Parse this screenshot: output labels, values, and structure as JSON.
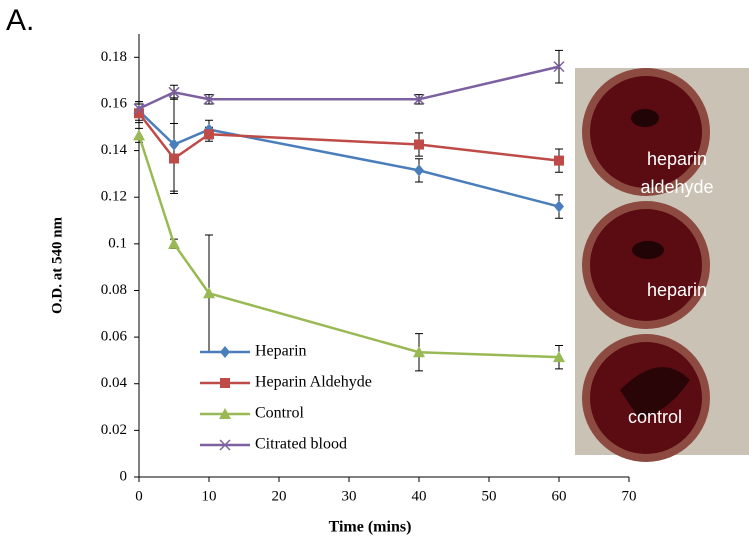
{
  "panel_label": "A.",
  "chart_data": {
    "type": "line",
    "x_label": "Time (mins)",
    "y_label": "O.D. at 540 nm",
    "x": [
      0,
      5,
      10,
      40,
      60
    ],
    "xlim": [
      0,
      70
    ],
    "xticks": [
      0,
      10,
      20,
      30,
      40,
      50,
      60,
      70
    ],
    "ylim": [
      0,
      0.19
    ],
    "yticks": [
      0,
      0.02,
      0.04,
      0.06,
      0.08,
      0.1,
      0.12,
      0.14,
      0.16,
      0.18
    ],
    "grid": false,
    "series": [
      {
        "name": "Heparin",
        "color": "#4a7ebb",
        "marker": "diamond",
        "values": [
          0.157,
          0.1426,
          0.149,
          0.1315,
          0.116
        ],
        "errors": [
          0.004,
          0.02,
          0.004,
          0.005,
          0.005
        ]
      },
      {
        "name": "Heparin Aldehyde",
        "color": "#be4b48",
        "marker": "square",
        "values": [
          0.156,
          0.1366,
          0.147,
          0.1426,
          0.1357
        ],
        "errors": [
          0.004,
          0.015,
          0.003,
          0.005,
          0.005
        ]
      },
      {
        "name": "Control",
        "color": "#98b954",
        "marker": "triangle",
        "values": [
          0.1465,
          0.1,
          0.0788,
          0.0535,
          0.0514
        ],
        "errors": [
          0.003,
          0.002,
          0.025,
          0.008,
          0.005
        ]
      },
      {
        "name": "Citrated blood",
        "color": "#7d60a0",
        "marker": "x",
        "values": [
          0.158,
          0.165,
          0.162,
          0.162,
          0.176
        ],
        "errors": [
          0.003,
          0.003,
          0.002,
          0.002,
          0.007
        ]
      }
    ]
  },
  "photo": {
    "labels": [
      [
        "heparin",
        "aldehyde"
      ],
      [
        "heparin"
      ],
      [
        "control"
      ]
    ]
  }
}
